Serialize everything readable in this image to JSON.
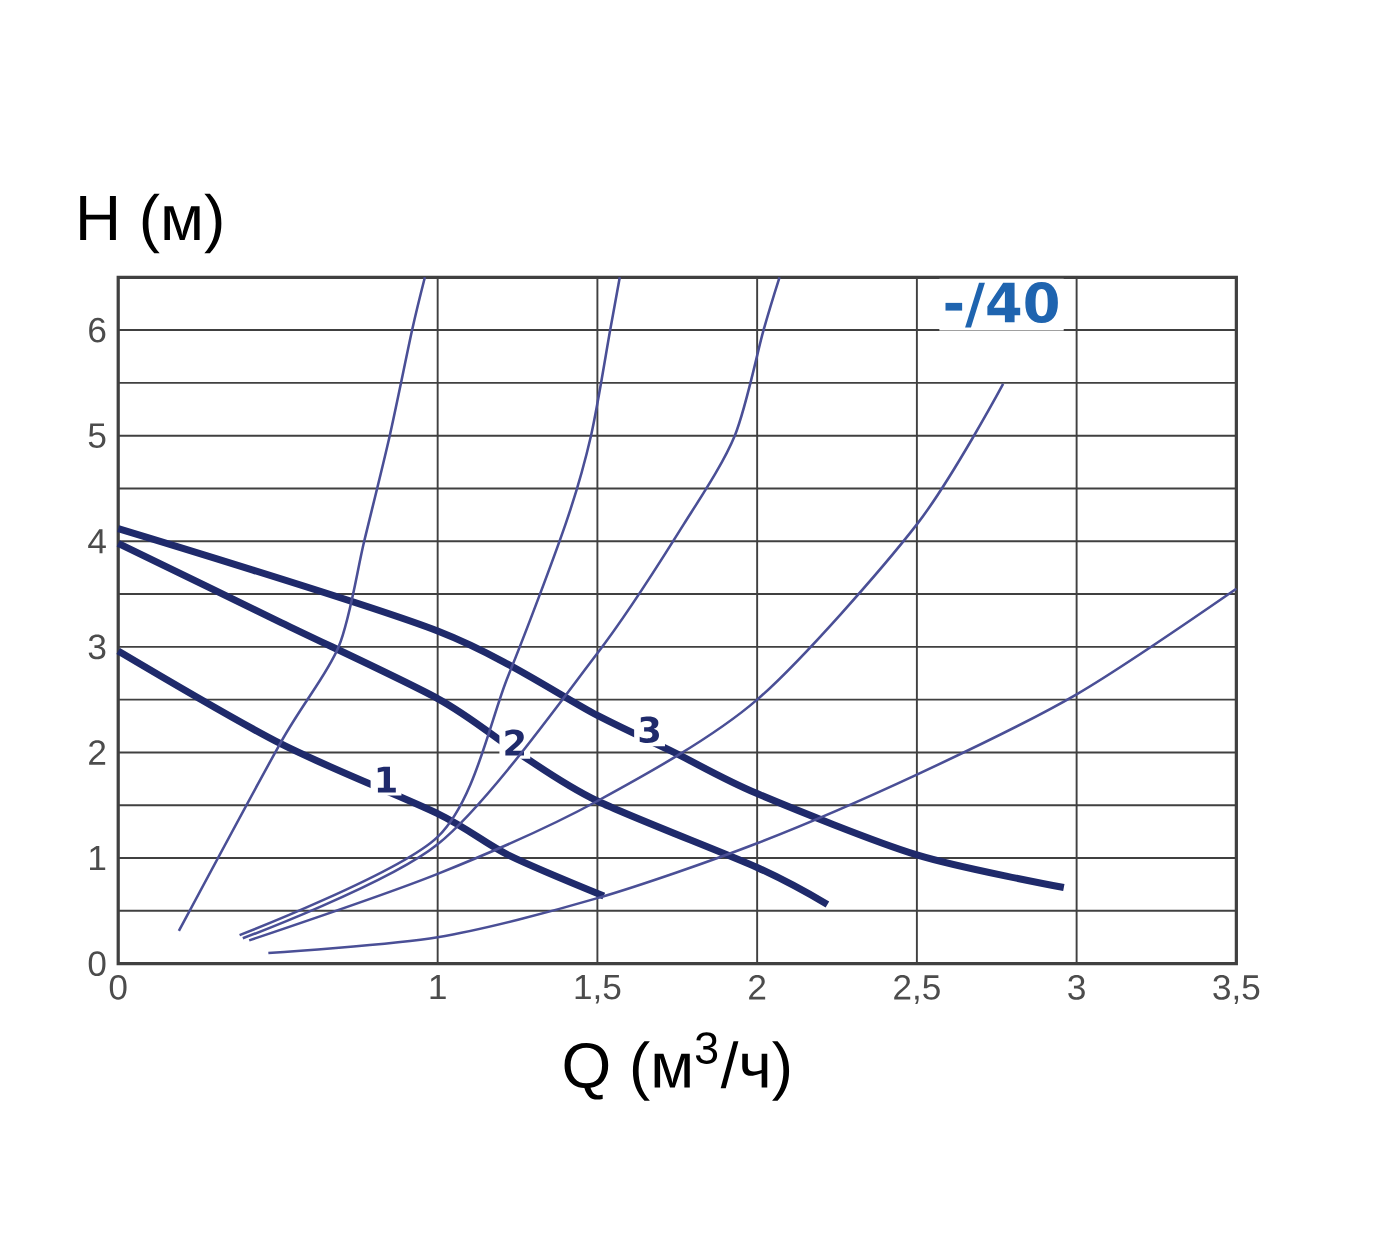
{
  "chart_data": {
    "type": "line",
    "xlabel": "Q (м$^{3}$/ч)",
    "ylabel": "H (м)",
    "xlim": [
      0,
      3.5
    ],
    "ylim": [
      0,
      6.5
    ],
    "xticks": [
      0,
      1,
      {
        "value": 1.5,
        "label": "1,5"
      },
      2,
      {
        "value": 2.5,
        "label": "2,5"
      },
      3,
      {
        "value": 3.5,
        "label": "3,5"
      }
    ],
    "yticks": [
      0,
      {
        "value": 0.5,
        "label": null
      },
      1,
      {
        "value": 1.5,
        "label": null
      },
      2,
      {
        "value": 2.5,
        "label": null
      },
      3,
      {
        "value": 3.5,
        "label": null
      },
      4,
      {
        "value": 4.5,
        "label": null
      },
      5,
      {
        "value": 5.5,
        "label": null
      },
      6
    ],
    "grid": true,
    "marker": "none",
    "line_style": "solid",
    "series": [
      {
        "name": "1",
        "color": "#1f2a6b",
        "x": [
          0,
          0.51,
          1.0,
          1.22,
          1.52
        ],
        "values": [
          2.96,
          2.08,
          1.42,
          1.03,
          0.64
        ]
      },
      {
        "name": "2",
        "color": "#1f2a6b",
        "x": [
          0,
          0.51,
          1.0,
          1.25,
          1.5,
          2.0,
          2.22
        ],
        "values": [
          3.98,
          3.23,
          2.51,
          2.0,
          1.54,
          0.91,
          0.56
        ]
      },
      {
        "name": "3",
        "color": "#1f2a6b",
        "x": [
          0,
          1.0,
          1.5,
          1.74,
          2.0,
          2.5,
          2.96
        ],
        "values": [
          4.12,
          3.15,
          2.35,
          2.0,
          1.61,
          1.03,
          0.72
        ]
      },
      {
        "color": "#4a4f96",
        "x": [
          0.19,
          0.51,
          0.69,
          0.77,
          0.85,
          0.92,
          0.96
        ],
        "values": [
          0.31,
          2.1,
          3.0,
          4.0,
          5.0,
          6.0,
          6.5
        ]
      },
      {
        "color": "#4a4f96",
        "x": [
          0.38,
          1.0,
          1.22,
          1.4,
          1.48,
          1.54,
          1.57
        ],
        "values": [
          0.27,
          1.2,
          2.72,
          4.16,
          5.0,
          6.0,
          6.5
        ]
      },
      {
        "color": "#4a4f96",
        "x": [
          0.39,
          1.0,
          1.5,
          1.77,
          1.93,
          2.02,
          2.07
        ],
        "values": [
          0.24,
          1.13,
          2.94,
          4.16,
          5.0,
          6.0,
          6.5
        ]
      },
      {
        "color": "#4a4f96",
        "x": [
          0.41,
          1.0,
          1.5,
          2.0,
          2.5,
          2.77
        ],
        "values": [
          0.22,
          0.85,
          1.54,
          2.5,
          4.16,
          5.49
        ]
      },
      {
        "color": "#4a4f96",
        "x": [
          0.47,
          1.0,
          1.5,
          2.0,
          2.5,
          3.0,
          3.5
        ],
        "values": [
          0.1,
          0.25,
          0.62,
          1.14,
          1.79,
          2.55,
          3.55
        ]
      }
    ],
    "annotations": [
      "-/40"
    ]
  }
}
